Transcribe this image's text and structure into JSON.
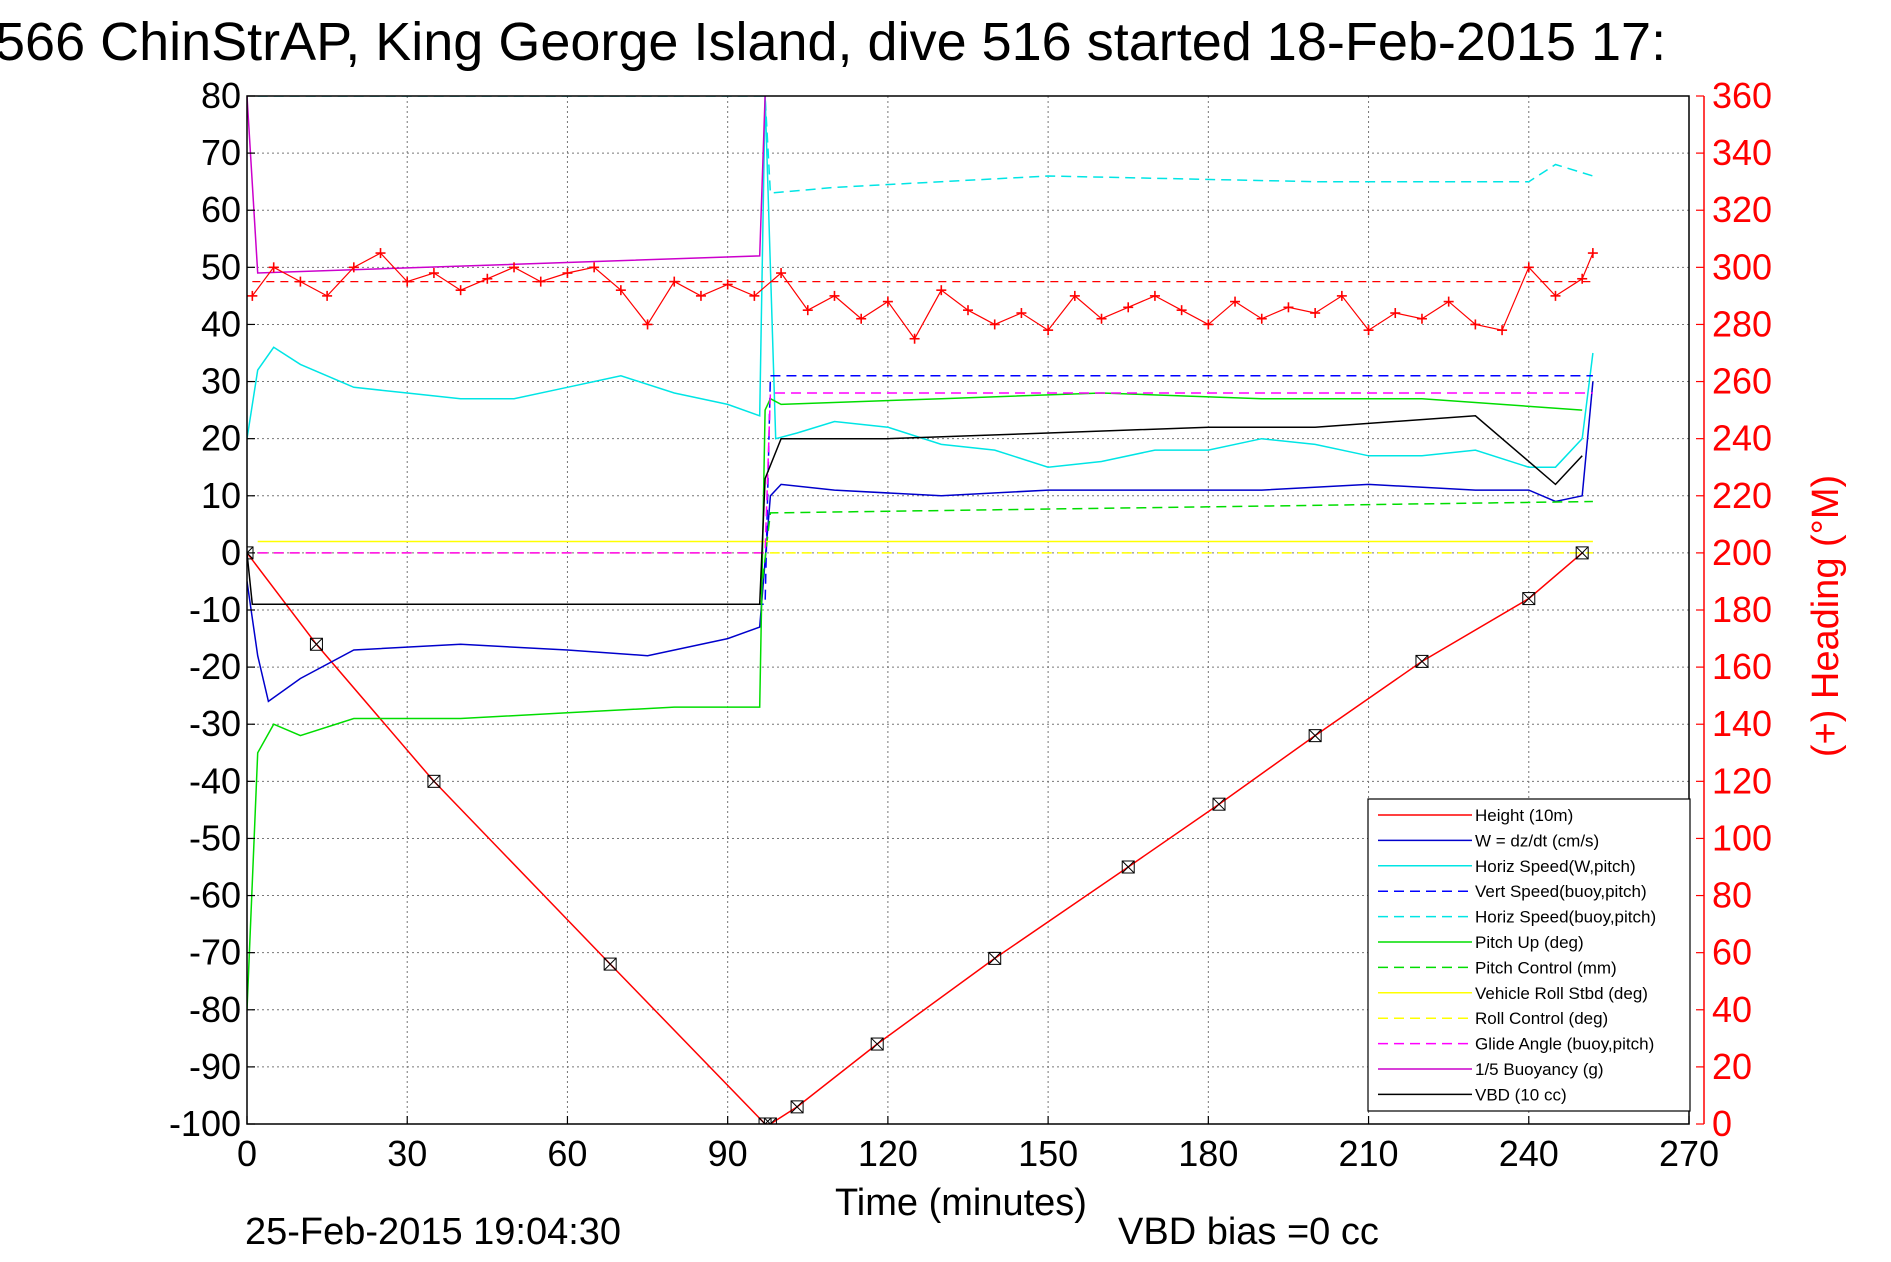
{
  "chart_data": {
    "type": "line",
    "title": "566 ChinStrAP, King George Island, dive 516 started 18-Feb-2015 17:",
    "xlabel": "Time (minutes)",
    "ylabel_right": "(+) Heading (°M)",
    "xlim": [
      0,
      270
    ],
    "ylim": [
      -100,
      80
    ],
    "ylim_right": [
      0,
      360
    ],
    "x_ticks": [
      "0",
      "30",
      "60",
      "90",
      "120",
      "150",
      "180",
      "210",
      "240",
      "270"
    ],
    "y_ticks": [
      "80",
      "70",
      "60",
      "50",
      "40",
      "30",
      "20",
      "10",
      "0",
      "-10",
      "-20",
      "-30",
      "-40",
      "-50",
      "-60",
      "-70",
      "-80",
      "-90",
      "-100"
    ],
    "y_right_ticks": [
      "360",
      "340",
      "320",
      "300",
      "280",
      "260",
      "240",
      "220",
      "200",
      "180",
      "160",
      "140",
      "120",
      "100",
      "80",
      "60",
      "40",
      "20",
      "0"
    ],
    "grid": true,
    "legend_position": "bottom-right",
    "footer_left": "25-Feb-2015 19:04:30",
    "footer_right": "VBD bias =0 cc",
    "series": [
      {
        "name": "Height (10m)",
        "color": "#ff0000",
        "style": "solid",
        "x": [
          0,
          13,
          35,
          68,
          97,
          98,
          103,
          118,
          140,
          165,
          182,
          200,
          220,
          240,
          250
        ],
        "values": [
          0,
          -16,
          -40,
          -72,
          -100,
          -100,
          -97,
          -86,
          -71,
          -55,
          -44,
          -32,
          -19,
          -8,
          0
        ]
      },
      {
        "name": "W = dz/dt (cm/s)",
        "color": "#0000cc",
        "style": "solid",
        "x": [
          0,
          2,
          4,
          10,
          20,
          40,
          60,
          75,
          90,
          96,
          98,
          100,
          110,
          130,
          150,
          170,
          190,
          210,
          230,
          240,
          245,
          250,
          252
        ],
        "values": [
          -5,
          -18,
          -26,
          -22,
          -17,
          -16,
          -17,
          -18,
          -15,
          -13,
          10,
          12,
          11,
          10,
          11,
          11,
          11,
          12,
          11,
          11,
          9,
          10,
          30
        ]
      },
      {
        "name": "Horiz Speed(W,pitch)",
        "color": "#00e5e5",
        "style": "solid",
        "x": [
          0,
          2,
          5,
          10,
          20,
          30,
          40,
          50,
          60,
          70,
          80,
          90,
          96,
          97,
          99,
          103,
          110,
          120,
          130,
          140,
          150,
          160,
          170,
          180,
          190,
          200,
          210,
          220,
          230,
          240,
          245,
          250,
          252
        ],
        "values": [
          20,
          32,
          36,
          33,
          29,
          28,
          27,
          27,
          29,
          31,
          28,
          26,
          24,
          80,
          20,
          21,
          23,
          22,
          19,
          18,
          15,
          16,
          18,
          18,
          20,
          19,
          17,
          17,
          18,
          15,
          15,
          20,
          35
        ]
      },
      {
        "name": "Vert Speed(buoy,pitch)",
        "color": "#0000ff",
        "style": "dashed",
        "x": [
          2,
          97,
          98,
          252
        ],
        "values": [
          -9,
          -9,
          31,
          31
        ]
      },
      {
        "name": "Horiz Speed(buoy,pitch)",
        "color": "#00e5e5",
        "style": "dashed",
        "x": [
          2,
          97,
          98,
          110,
          150,
          200,
          240,
          245,
          252
        ],
        "values": [
          80,
          80,
          63,
          64,
          66,
          65,
          65,
          68,
          66
        ]
      },
      {
        "name": "Pitch Up (deg)",
        "color": "#00dd00",
        "style": "solid",
        "x": [
          0,
          2,
          5,
          10,
          20,
          40,
          60,
          80,
          96,
          97,
          98,
          100,
          130,
          160,
          190,
          220,
          250
        ],
        "values": [
          -80,
          -35,
          -30,
          -32,
          -29,
          -29,
          -28,
          -27,
          -27,
          25,
          27,
          26,
          27,
          28,
          27,
          27,
          25
        ]
      },
      {
        "name": "Pitch Control (mm)",
        "color": "#00dd00",
        "style": "dashed",
        "x": [
          2,
          96,
          98,
          252
        ],
        "values": [
          -9,
          -9,
          7,
          9
        ]
      },
      {
        "name": "Vehicle Roll Stbd (deg)",
        "color": "#ffff00",
        "style": "solid",
        "x": [
          2,
          96,
          98,
          252
        ],
        "values": [
          2,
          2,
          2,
          2
        ]
      },
      {
        "name": "Roll Control (deg)",
        "color": "#ffff00",
        "style": "dashed",
        "x": [
          2,
          96,
          98,
          252
        ],
        "values": [
          0,
          0,
          0,
          0
        ]
      },
      {
        "name": "Glide Angle (buoy,pitch)",
        "color": "#ff00ff",
        "style": "dashed",
        "x": [
          2,
          97,
          98,
          252
        ],
        "values": [
          0,
          0,
          28,
          28
        ]
      },
      {
        "name": "1/5 Buoyancy (g)",
        "color": "#cc00cc",
        "style": "solid",
        "x": [
          0,
          2,
          96,
          97
        ],
        "values": [
          80,
          49,
          52,
          80
        ]
      },
      {
        "name": "VBD (10 cc)",
        "color": "#000000",
        "style": "solid",
        "x": [
          0,
          1,
          96,
          97,
          100,
          120,
          150,
          180,
          200,
          230,
          245,
          250
        ],
        "values": [
          0,
          -9,
          -9,
          13,
          20,
          20,
          21,
          22,
          22,
          24,
          12,
          17
        ]
      }
    ],
    "heading_series": {
      "color": "#ff0000",
      "marker": "+",
      "x": [
        1,
        5,
        10,
        15,
        20,
        25,
        30,
        35,
        40,
        45,
        50,
        55,
        60,
        65,
        70,
        75,
        80,
        85,
        90,
        95,
        100,
        105,
        110,
        115,
        120,
        125,
        130,
        135,
        140,
        145,
        150,
        155,
        160,
        165,
        170,
        175,
        180,
        185,
        190,
        195,
        200,
        205,
        210,
        215,
        220,
        225,
        230,
        235,
        240,
        245,
        250,
        252
      ],
      "values": [
        290,
        300,
        295,
        290,
        300,
        305,
        295,
        298,
        292,
        296,
        300,
        295,
        298,
        300,
        292,
        280,
        295,
        290,
        294,
        290,
        298,
        285,
        290,
        282,
        288,
        275,
        292,
        285,
        280,
        284,
        278,
        290,
        282,
        286,
        290,
        285,
        280,
        288,
        282,
        286,
        284,
        290,
        278,
        284,
        282,
        288,
        280,
        278,
        300,
        290,
        296,
        305
      ],
      "reference_value": 295
    }
  }
}
